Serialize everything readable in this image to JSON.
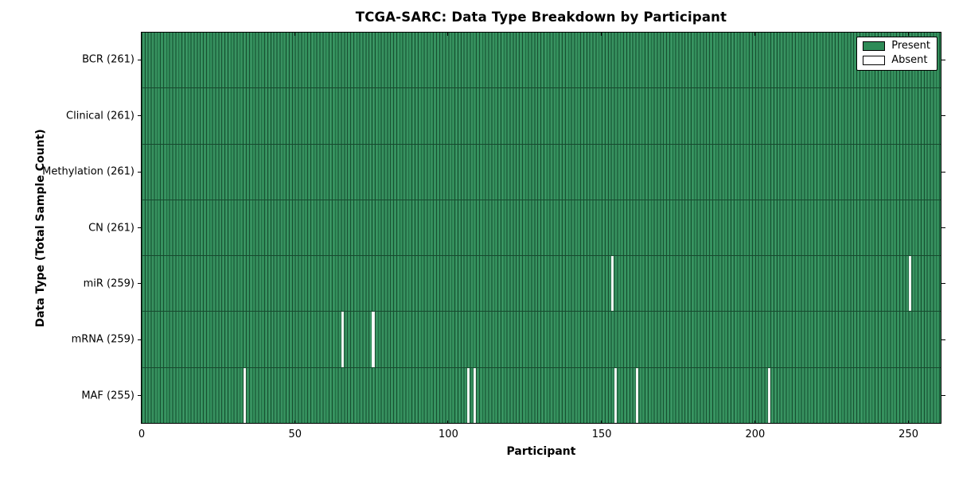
{
  "chart_data": {
    "type": "heatmap",
    "title": "TCGA-SARC: Data Type Breakdown by Participant",
    "xlabel": "Participant",
    "ylabel": "Data Type (Total Sample Count)",
    "x_ticks": [
      0,
      50,
      100,
      150,
      200,
      250
    ],
    "x_range": [
      0,
      261
    ],
    "n_participants": 261,
    "grid": false,
    "legend_position": "upper right",
    "legend": [
      {
        "label": "Present",
        "color": "#2e8b57"
      },
      {
        "label": "Absent",
        "color": "#ffffff"
      }
    ],
    "colors": {
      "present": "#2e8b57",
      "absent": "#ffffff",
      "bar_edge": "#1b5134",
      "bar_highlight": "#419a6a",
      "row_divider": "#17492e",
      "axis": "#000000"
    },
    "rows": [
      {
        "name": "BCR",
        "label": "BCR (261)",
        "present_count": 261,
        "absent_participants": []
      },
      {
        "name": "Clinical",
        "label": "Clinical (261)",
        "present_count": 261,
        "absent_participants": []
      },
      {
        "name": "Methylation",
        "label": "Methylation (261)",
        "present_count": 261,
        "absent_participants": []
      },
      {
        "name": "CN",
        "label": "CN (261)",
        "present_count": 261,
        "absent_participants": []
      },
      {
        "name": "miR",
        "label": "miR (259)",
        "present_count": 259,
        "absent_participants": [
          153,
          250
        ]
      },
      {
        "name": "mRNA",
        "label": "mRNA (259)",
        "present_count": 259,
        "absent_participants": [
          65,
          75
        ]
      },
      {
        "name": "MAF",
        "label": "MAF (255)",
        "present_count": 255,
        "absent_participants": [
          33,
          106,
          108,
          154,
          161,
          204
        ]
      }
    ]
  }
}
